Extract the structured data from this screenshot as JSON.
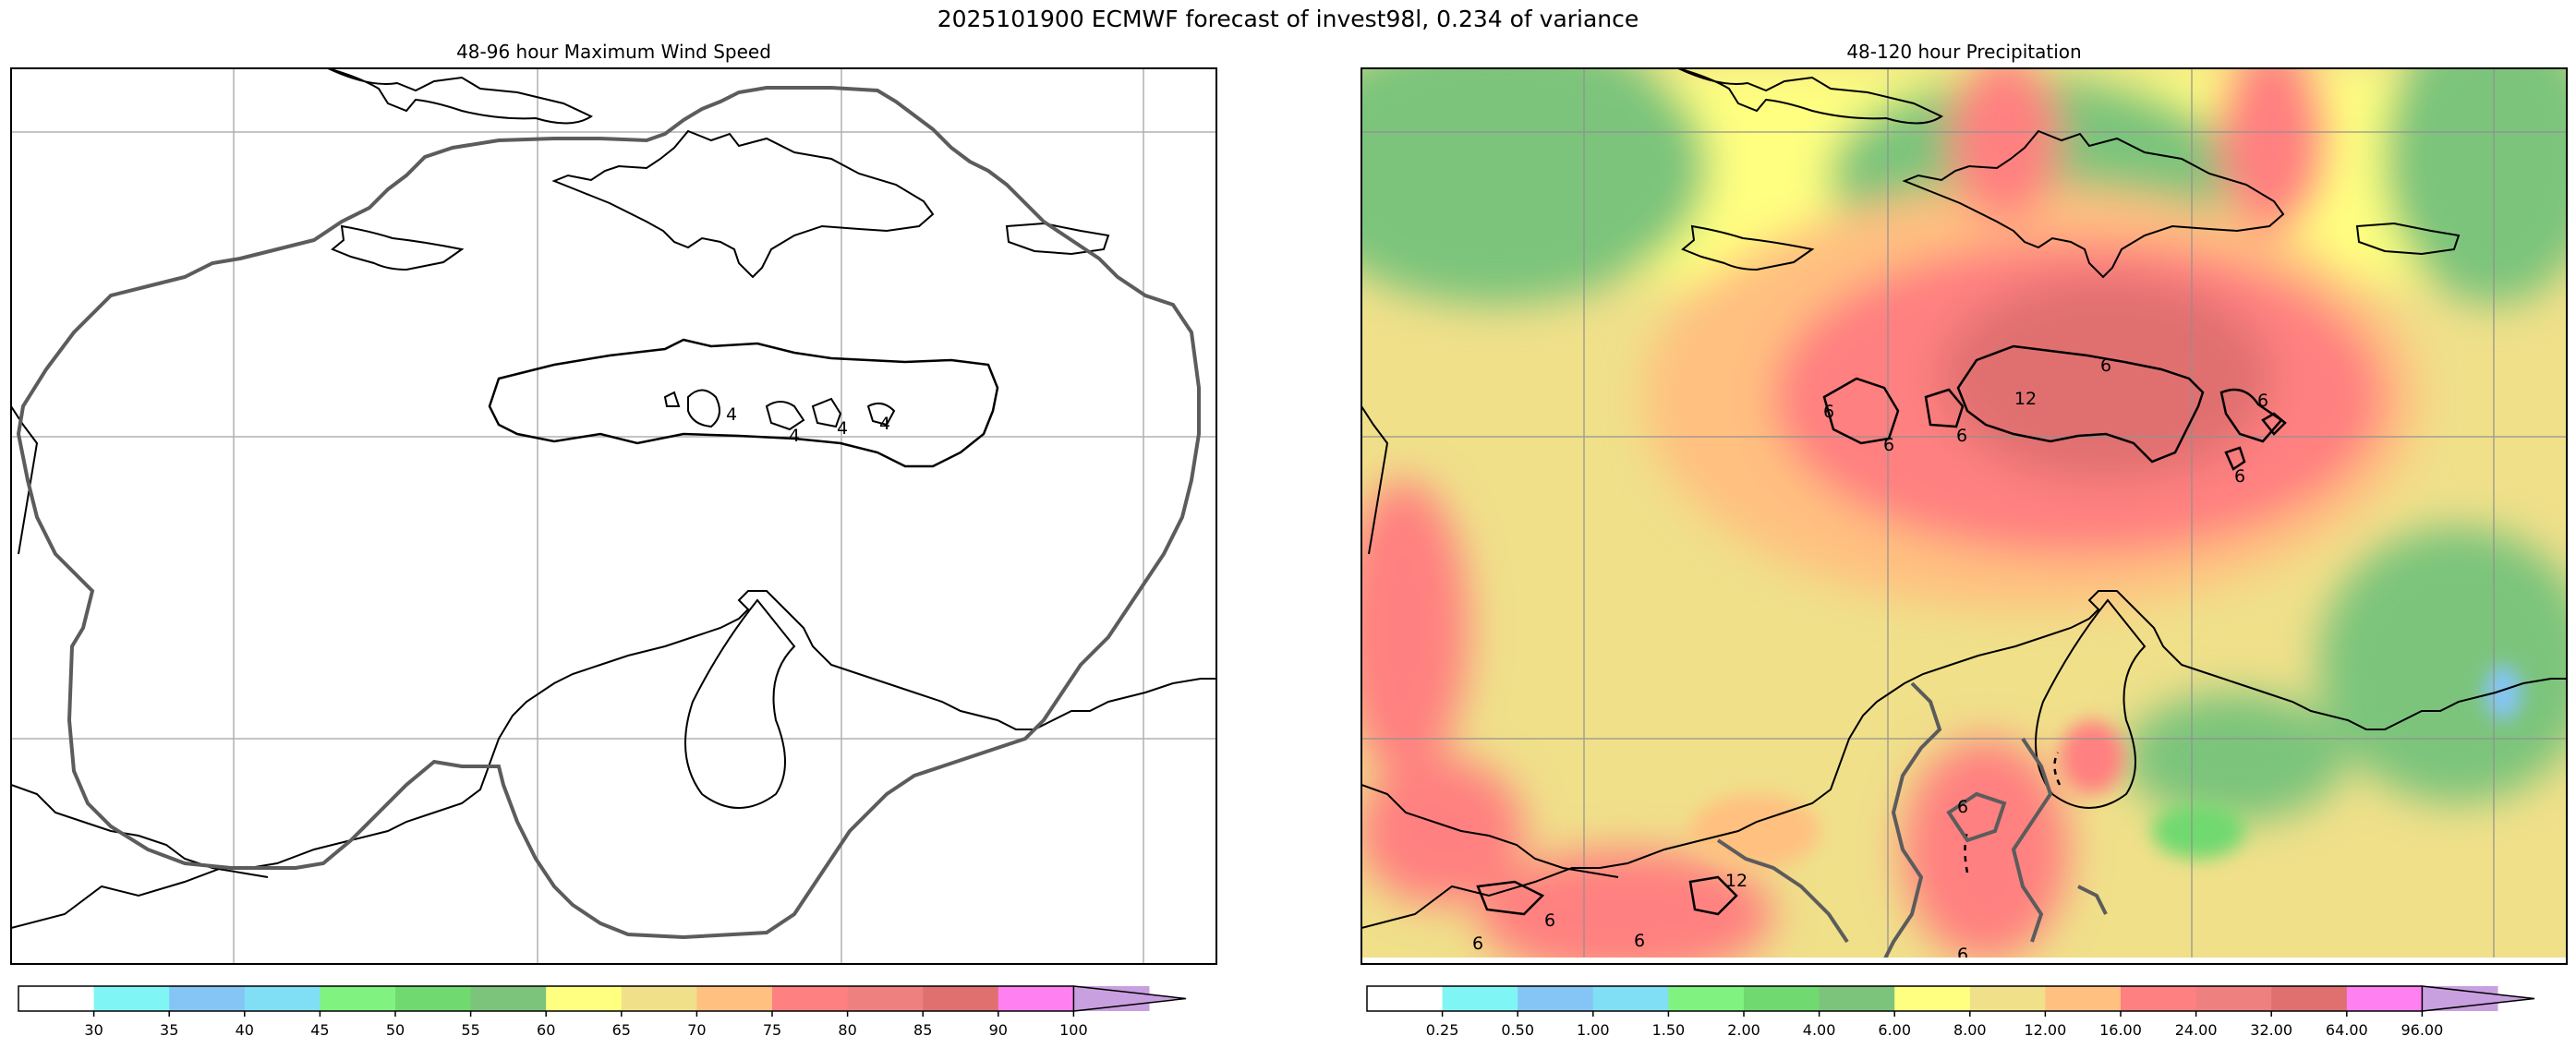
{
  "figure": {
    "title": "2025101900 ECMWF forecast of invest98l, 0.234 of variance"
  },
  "chart_data": [
    {
      "type": "heatmap",
      "title": "48-96 hour Maximum Wind Speed",
      "xlabel": "",
      "ylabel": "",
      "grid": true,
      "contour_labels": [
        "4",
        "4",
        "4",
        "4"
      ],
      "colorbar": {
        "orientation": "horizontal",
        "extend": "max",
        "tick_labels": [
          "30",
          "35",
          "40",
          "45",
          "50",
          "55",
          "60",
          "65",
          "70",
          "75",
          "80",
          "85",
          "90",
          "100"
        ],
        "colors": [
          "#ffffff",
          "#7ff5f5",
          "#85c5f5",
          "#80dff5",
          "#80f280",
          "#70d970",
          "#7cc47c",
          "#ffff80",
          "#f0e08a",
          "#ffc080",
          "#ff8080",
          "#ef8080",
          "#e07070",
          "#ff80f0",
          "#c8a0e0"
        ]
      }
    },
    {
      "type": "heatmap",
      "title": "48-120 hour Precipitation",
      "xlabel": "",
      "ylabel": "",
      "grid": true,
      "contour_labels": [
        "6",
        "6",
        "6",
        "12",
        "6",
        "6",
        "6",
        "6",
        "6",
        "6",
        "12",
        "6",
        "6"
      ],
      "colorbar": {
        "orientation": "horizontal",
        "extend": "max",
        "tick_labels": [
          "0.25",
          "0.50",
          "1.00",
          "1.50",
          "2.00",
          "4.00",
          "6.00",
          "8.00",
          "12.00",
          "16.00",
          "24.00",
          "32.00",
          "64.00",
          "96.00"
        ],
        "colors": [
          "#ffffff",
          "#7ff5f5",
          "#85c5f5",
          "#80dff5",
          "#80f280",
          "#70d970",
          "#7cc47c",
          "#ffff80",
          "#f0e08a",
          "#ffc080",
          "#ff8080",
          "#ef8080",
          "#e07070",
          "#ff80f0",
          "#c8a0e0"
        ]
      }
    }
  ]
}
